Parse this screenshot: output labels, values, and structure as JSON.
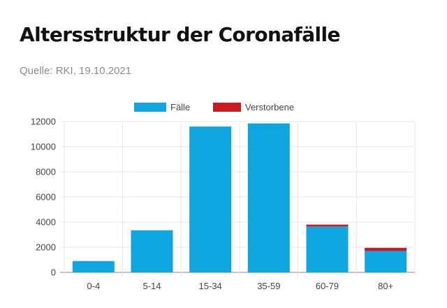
{
  "page": {
    "title": "Altersstruktur der Coronafälle",
    "source": "Quelle: RKI, 19.10.2021"
  },
  "chart_data": {
    "type": "bar",
    "stacked": true,
    "categories": [
      "0-4",
      "5-14",
      "15-34",
      "35-59",
      "60-79",
      "80+"
    ],
    "series": [
      {
        "name": "Fälle",
        "color": "#0ea5e0",
        "values": [
          900,
          3350,
          11600,
          11850,
          3650,
          1700
        ]
      },
      {
        "name": "Verstorbene",
        "color": "#cc1a20",
        "values": [
          0,
          0,
          0,
          0,
          150,
          250
        ]
      }
    ],
    "yticks": [
      0,
      2000,
      4000,
      6000,
      8000,
      10000,
      12000
    ],
    "ylim": [
      0,
      12000
    ],
    "grid": true,
    "legend_position": "top-center"
  }
}
